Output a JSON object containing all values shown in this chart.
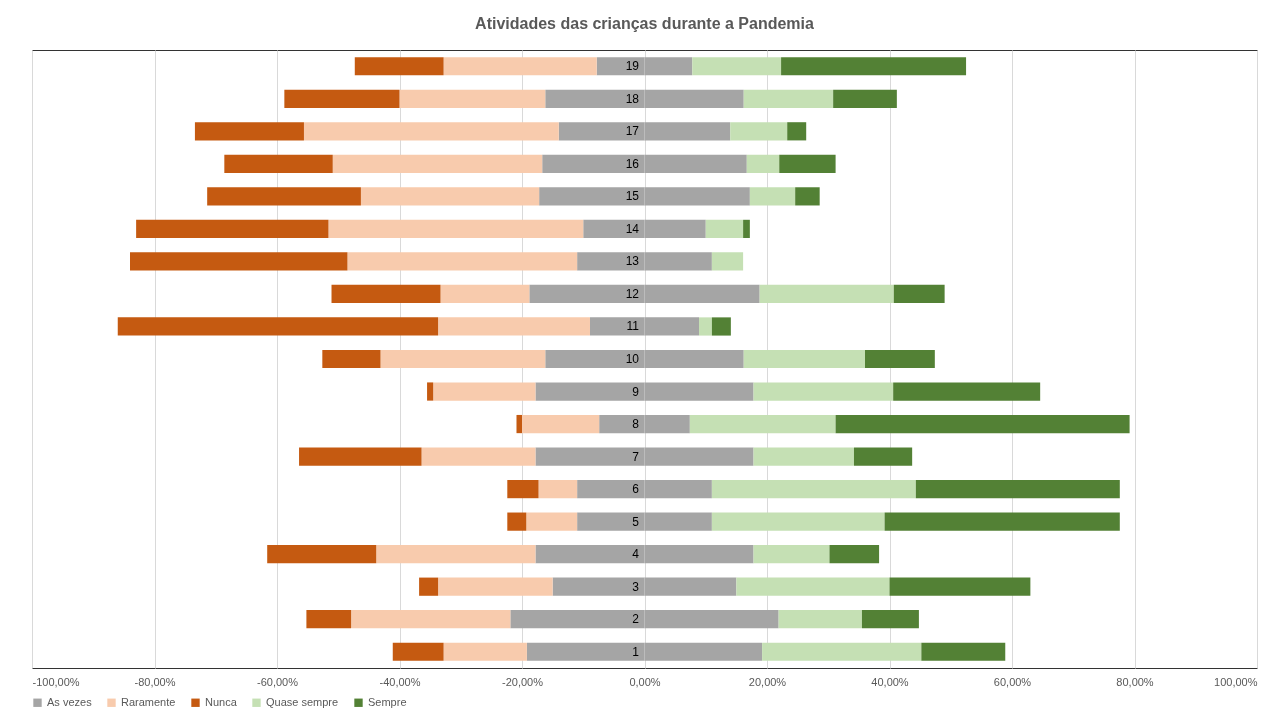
{
  "chart_data": {
    "type": "bar",
    "title": "Atividades das crianças durante a Pandemia",
    "orientation": "horizontal",
    "stacked": true,
    "grid": "x",
    "legend": "bottom",
    "categories": [
      "19",
      "18",
      "17",
      "16",
      "15",
      "14",
      "13",
      "12",
      "11",
      "10",
      "9",
      "8",
      "7",
      "6",
      "5",
      "4",
      "3",
      "2",
      "1"
    ],
    "xlim": [
      -100,
      100
    ],
    "xticks": [
      {
        "value": -100,
        "label": "-100,00%"
      },
      {
        "value": -80,
        "label": "-80,00%"
      },
      {
        "value": -60,
        "label": "-60,00%"
      },
      {
        "value": -40,
        "label": "-40,00%"
      },
      {
        "value": -20,
        "label": "-20,00%"
      },
      {
        "value": 0,
        "label": "0,00%"
      },
      {
        "value": 20,
        "label": "20,00%"
      },
      {
        "value": 40,
        "label": "40,00%"
      },
      {
        "value": 60,
        "label": "60,00%"
      },
      {
        "value": 80,
        "label": "80,00%"
      },
      {
        "value": 100,
        "label": "100,00%"
      }
    ],
    "series": [
      {
        "name": "As vezes",
        "color": "#a5a5a5",
        "values": [
          -7.8,
          -16.2,
          -14.0,
          -16.7,
          -17.2,
          -10.0,
          -11.0,
          -18.8,
          -8.9,
          -16.2,
          -17.8,
          -7.4,
          -17.8,
          -11.0,
          -11.0,
          -17.8,
          -15.0,
          -21.9,
          -19.2
        ]
      },
      {
        "name": "Raramente",
        "color": "#f8cbad",
        "values": [
          -25.0,
          -23.8,
          -41.6,
          -34.2,
          -29.1,
          -41.6,
          -37.5,
          -14.5,
          -24.8,
          -26.9,
          -16.7,
          -12.6,
          -18.6,
          -6.3,
          -8.3,
          -26.0,
          -18.7,
          -26.0,
          -13.6
        ]
      },
      {
        "name": "Nunca",
        "color": "#c55a11",
        "values": [
          -14.5,
          -18.8,
          -17.8,
          -17.7,
          -25.1,
          -31.4,
          -35.5,
          -17.8,
          -52.3,
          -9.5,
          -1.0,
          -0.9,
          -20.0,
          -5.1,
          -3.1,
          -17.8,
          -3.1,
          -7.3,
          -8.3
        ]
      },
      {
        "color": "#a5a5a5",
        "values": [
          7.8,
          16.2,
          14.0,
          16.7,
          17.2,
          10.0,
          11.0,
          18.8,
          8.9,
          16.2,
          17.8,
          7.4,
          17.8,
          11.0,
          11.0,
          17.8,
          15.0,
          21.9,
          19.2
        ]
      },
      {
        "name": "Quase sempre",
        "color": "#c5e0b4",
        "values": [
          14.5,
          14.6,
          9.3,
          5.3,
          7.4,
          6.1,
          5.1,
          21.9,
          2.1,
          19.8,
          22.8,
          23.8,
          16.4,
          33.3,
          28.2,
          12.4,
          25.0,
          13.6,
          26.0
        ]
      },
      {
        "name": "Sempre",
        "color": "#538135",
        "values": [
          30.2,
          10.4,
          3.1,
          9.2,
          4.0,
          1.1,
          0,
          8.3,
          3.1,
          11.4,
          24.0,
          48.0,
          9.5,
          33.3,
          38.4,
          8.1,
          23.0,
          9.3,
          13.7
        ]
      }
    ]
  }
}
